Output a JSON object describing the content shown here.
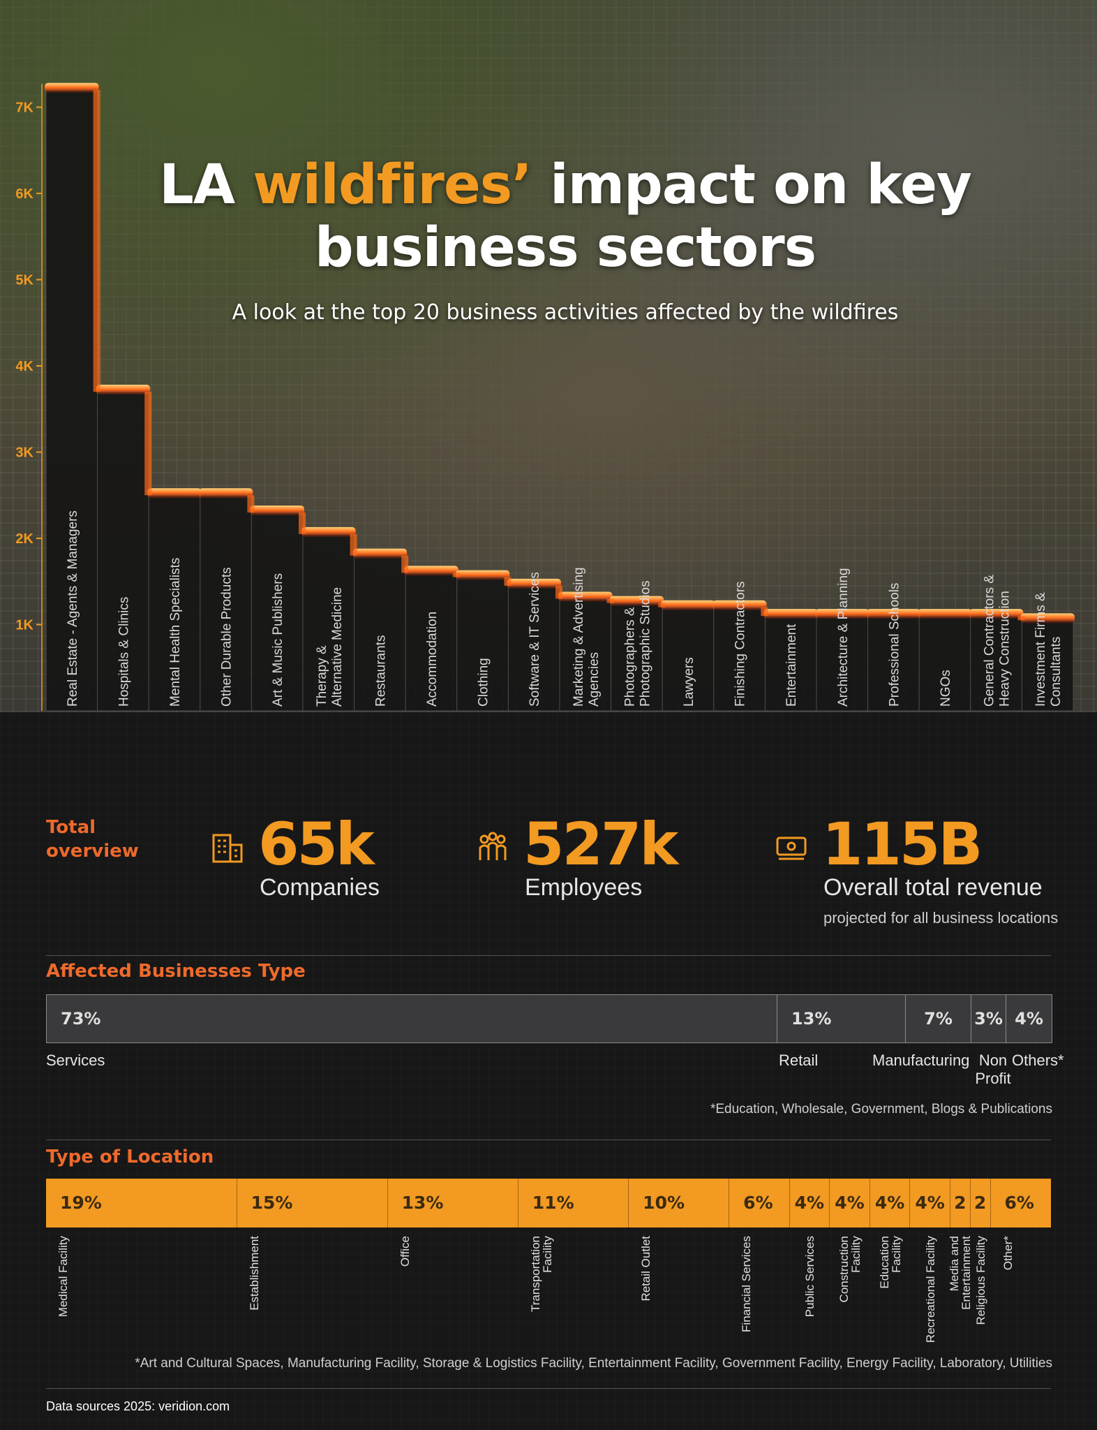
{
  "title": {
    "prefix": "LA ",
    "highlight": "wildfires’",
    "suffix": " impact on key business sectors",
    "subtitle": "A look at the top 20 business activities affected by the wildfires"
  },
  "chart_data": {
    "type": "bar",
    "y_ticks": [
      "7K",
      "6K",
      "5K",
      "4K",
      "3K",
      "2K",
      "1K"
    ],
    "y_tick_values": [
      7000,
      6000,
      5000,
      4000,
      3000,
      2000,
      1000
    ],
    "ylim": [
      0,
      7300
    ],
    "categories": [
      "Real Estate - Agents & Managers",
      "Hospitals & Clinics",
      "Mental Health Specialists",
      "Other Durable Products",
      "Art & Music Publishers",
      "Therapy &\nAlternative Medicine",
      "Restaurants",
      "Accommodation",
      "Clothing",
      "Software & IT Services",
      "Marketing & Advertising\nAgencies",
      "Photographers &\nPhotographic Studios",
      "Lawyers",
      "Finishing Contractors",
      "Entertainment",
      "Architecture & Planning",
      "Professional Schools",
      "NGOs",
      "General Contractors &\nHeavy Construction",
      "Investment Firms &\nConsultants"
    ],
    "values": [
      7200,
      3700,
      2500,
      2500,
      2300,
      2050,
      1800,
      1600,
      1550,
      1450,
      1300,
      1250,
      1200,
      1200,
      1100,
      1100,
      1100,
      1100,
      1100,
      1050
    ]
  },
  "overview": {
    "label": "Total overview",
    "stats": [
      {
        "icon": "building-icon",
        "value": "65k",
        "label": "Companies",
        "note": ""
      },
      {
        "icon": "people-icon",
        "value": "527k",
        "label": "Employees",
        "note": ""
      },
      {
        "icon": "money-icon",
        "value": "115B",
        "label": "Overall total revenue",
        "note": "projected for all business locations"
      }
    ]
  },
  "business_types": {
    "title": "Affected Businesses Type",
    "segments": [
      {
        "pct": "73%",
        "share": 73,
        "label": "Services"
      },
      {
        "pct": "13%",
        "share": 13,
        "label": "Retail"
      },
      {
        "pct": "7%",
        "share": 7,
        "label": "Manufacturing"
      },
      {
        "pct": "3%",
        "share": 3,
        "label": "Non Profit"
      },
      {
        "pct": "4%",
        "share": 4,
        "label": "Others*"
      }
    ],
    "note": "*Education, Wholesale, Government, Blogs & Publications"
  },
  "location_types": {
    "title": "Type of Location",
    "segments": [
      {
        "pct": "19%",
        "share": 19,
        "label": "Medical Facility"
      },
      {
        "pct": "15%",
        "share": 15,
        "label": "Establishment"
      },
      {
        "pct": "13%",
        "share": 13,
        "label": "Office"
      },
      {
        "pct": "11%",
        "share": 11,
        "label": "Transportation\nFacility"
      },
      {
        "pct": "10%",
        "share": 10,
        "label": "Retail Outlet"
      },
      {
        "pct": "6%",
        "share": 6,
        "label": "Financial Services"
      },
      {
        "pct": "4%",
        "share": 4,
        "label": "Public Services"
      },
      {
        "pct": "4%",
        "share": 4,
        "label": "Construction\nFacility"
      },
      {
        "pct": "4%",
        "share": 4,
        "label": "Education\nFacility"
      },
      {
        "pct": "4%",
        "share": 4,
        "label": "Recreational Facility"
      },
      {
        "pct": "2",
        "share": 2,
        "label": "Media and\nEntertainment"
      },
      {
        "pct": "2",
        "share": 2,
        "label": "Religious Facility"
      },
      {
        "pct": "6%",
        "share": 6,
        "label": "Other*"
      }
    ],
    "note": "*Art and Cultural Spaces, Manufacturing Facility, Storage & Logistics Facility, Entertainment Facility, Government Facility, Energy Facility, Laboratory, Utilities"
  },
  "source": "Data sources 2025: veridion.com",
  "colors": {
    "accent": "#f29a21",
    "heading": "#ee6a2c",
    "fire": "#ff6a1a"
  }
}
